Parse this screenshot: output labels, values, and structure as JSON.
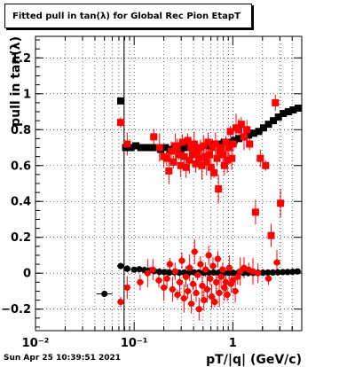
{
  "title_box": {
    "text": "Fitted pull in tan(λ) for Global Rec Pion EtapT"
  },
  "footer": {
    "timestamp": "Sun Apr 25 10:39:51 2021"
  },
  "colors": {
    "series_black": "#000000",
    "series_red": "#ff0000",
    "grid": "#000000"
  },
  "chart_data": {
    "type": "scatter",
    "title": "Fitted pull in tan(λ) for Global Rec Pion EtapT",
    "xlabel": "pT/|q| (GeV/c)",
    "ylabel": "pull in tan(λ)",
    "xscale": "log",
    "xlim": [
      0.01,
      5
    ],
    "ylim": [
      -0.32,
      1.32
    ],
    "grid": true,
    "x_tick_labels": [
      "10⁻²",
      "10⁻¹",
      "1"
    ],
    "x_ticks": [
      0.01,
      0.1,
      1
    ],
    "y_ticks": [
      -0.2,
      0,
      0.2,
      0.4,
      0.6,
      0.8,
      1,
      1.2
    ],
    "y_tick_labels": [
      "−0.2",
      "0",
      "0.2",
      "0.4",
      "0.6",
      "0.8",
      "1",
      "1.2"
    ],
    "vline_x": 0.079,
    "series": [
      {
        "role": "sigma_black_squares",
        "color": "#000000",
        "marker": "square",
        "points": [
          [
            0.073,
            0.96
          ],
          [
            0.082,
            0.7
          ],
          [
            0.093,
            0.7
          ],
          [
            0.104,
            0.71
          ],
          [
            0.117,
            0.7
          ],
          [
            0.131,
            0.7
          ],
          [
            0.147,
            0.7
          ],
          [
            0.165,
            0.7
          ],
          [
            0.185,
            0.69
          ],
          [
            0.207,
            0.7
          ],
          [
            0.232,
            0.69
          ],
          [
            0.26,
            0.7
          ],
          [
            0.292,
            0.69
          ],
          [
            0.327,
            0.7
          ],
          [
            0.367,
            0.7
          ],
          [
            0.411,
            0.7
          ],
          [
            0.461,
            0.7
          ],
          [
            0.517,
            0.71
          ],
          [
            0.58,
            0.71
          ],
          [
            0.65,
            0.72
          ],
          [
            0.729,
            0.72
          ],
          [
            0.818,
            0.73
          ],
          [
            0.917,
            0.73
          ],
          [
            1.03,
            0.74
          ],
          [
            1.15,
            0.75
          ],
          [
            1.29,
            0.76
          ],
          [
            1.45,
            0.77
          ],
          [
            1.63,
            0.78
          ],
          [
            1.83,
            0.79
          ],
          [
            2.05,
            0.81
          ],
          [
            2.3,
            0.83
          ],
          [
            2.58,
            0.85
          ],
          [
            2.9,
            0.87
          ],
          [
            3.25,
            0.89
          ],
          [
            3.65,
            0.9
          ],
          [
            4.09,
            0.91
          ],
          [
            4.59,
            0.92
          ]
        ]
      },
      {
        "role": "sigma_red_squares",
        "color": "#ff0000",
        "marker": "square",
        "points": [
          [
            0.073,
            0.84
          ],
          [
            0.085,
            0.72
          ],
          [
            0.158,
            0.76
          ],
          [
            0.181,
            0.7
          ],
          [
            0.2,
            0.65
          ],
          [
            0.214,
            0.64
          ],
          [
            0.225,
            0.57
          ],
          [
            0.238,
            0.68
          ],
          [
            0.25,
            0.62
          ],
          [
            0.262,
            0.71
          ],
          [
            0.273,
            0.7
          ],
          [
            0.285,
            0.66
          ],
          [
            0.297,
            0.6
          ],
          [
            0.309,
            0.73
          ],
          [
            0.322,
            0.65
          ],
          [
            0.336,
            0.59
          ],
          [
            0.349,
            0.74
          ],
          [
            0.363,
            0.63
          ],
          [
            0.377,
            0.7
          ],
          [
            0.392,
            0.66
          ],
          [
            0.406,
            0.72
          ],
          [
            0.421,
            0.61
          ],
          [
            0.437,
            0.68
          ],
          [
            0.453,
            0.64
          ],
          [
            0.47,
            0.7
          ],
          [
            0.487,
            0.6
          ],
          [
            0.505,
            0.71
          ],
          [
            0.523,
            0.65
          ],
          [
            0.542,
            0.62
          ],
          [
            0.561,
            0.73
          ],
          [
            0.581,
            0.66
          ],
          [
            0.602,
            0.59
          ],
          [
            0.623,
            0.7
          ],
          [
            0.645,
            0.56
          ],
          [
            0.668,
            0.72
          ],
          [
            0.692,
            0.64
          ],
          [
            0.716,
            0.47
          ],
          [
            0.741,
            0.68
          ],
          [
            0.767,
            0.7
          ],
          [
            0.794,
            0.66
          ],
          [
            0.822,
            0.6
          ],
          [
            0.851,
            0.73
          ],
          [
            0.881,
            0.63
          ],
          [
            0.912,
            0.7
          ],
          [
            0.944,
            0.79
          ],
          [
            0.977,
            0.64
          ],
          [
            1.01,
            0.72
          ],
          [
            1.08,
            0.81
          ],
          [
            1.15,
            0.8
          ],
          [
            1.22,
            0.83
          ],
          [
            1.3,
            0.76
          ],
          [
            1.39,
            0.8
          ],
          [
            1.48,
            0.72
          ],
          [
            1.7,
            0.34
          ],
          [
            1.9,
            0.64
          ],
          [
            2.15,
            0.6
          ],
          [
            2.45,
            0.21
          ],
          [
            2.7,
            0.95
          ],
          [
            3.05,
            0.39
          ]
        ]
      },
      {
        "role": "mean_black_circles",
        "color": "#000000",
        "marker": "circle",
        "points": [
          [
            0.05,
            -0.115
          ],
          [
            0.073,
            0.04
          ],
          [
            0.085,
            0.025
          ],
          [
            0.1,
            0.02
          ],
          [
            0.113,
            0.022
          ],
          [
            0.127,
            0.018
          ],
          [
            0.143,
            0.015
          ],
          [
            0.16,
            0.012
          ],
          [
            0.18,
            0.008
          ],
          [
            0.202,
            0.006
          ],
          [
            0.227,
            0.004
          ],
          [
            0.255,
            0.005
          ],
          [
            0.286,
            0.003
          ],
          [
            0.321,
            0.004
          ],
          [
            0.36,
            0.003
          ],
          [
            0.404,
            0.005
          ],
          [
            0.453,
            0.004
          ],
          [
            0.508,
            0.003
          ],
          [
            0.57,
            0.003
          ],
          [
            0.64,
            0.004
          ],
          [
            0.718,
            0.003
          ],
          [
            0.806,
            0.003
          ],
          [
            0.904,
            0.002
          ],
          [
            1.01,
            0.002
          ],
          [
            1.14,
            0.003
          ],
          [
            1.28,
            0.002
          ],
          [
            1.43,
            0.002
          ],
          [
            1.61,
            0.002
          ],
          [
            1.8,
            0.003
          ],
          [
            2.02,
            0.003
          ],
          [
            2.27,
            0.004
          ],
          [
            2.55,
            0.004
          ],
          [
            2.86,
            0.005
          ],
          [
            3.21,
            0.006
          ],
          [
            3.6,
            0.007
          ],
          [
            4.04,
            0.008
          ],
          [
            4.53,
            0.01
          ]
        ]
      },
      {
        "role": "mean_red_circles",
        "color": "#ff0000",
        "marker": "circle",
        "points": [
          [
            0.073,
            -0.16
          ],
          [
            0.085,
            -0.08
          ],
          [
            0.115,
            -0.05
          ],
          [
            0.137,
            0.0
          ],
          [
            0.155,
            0.02
          ],
          [
            0.178,
            -0.04
          ],
          [
            0.2,
            -0.08
          ],
          [
            0.215,
            -0.03
          ],
          [
            0.23,
            0.05
          ],
          [
            0.245,
            -0.09
          ],
          [
            0.26,
            0.01
          ],
          [
            0.275,
            -0.12
          ],
          [
            0.29,
            -0.05
          ],
          [
            0.305,
            0.07
          ],
          [
            0.32,
            -0.14
          ],
          [
            0.335,
            -0.02
          ],
          [
            0.35,
            -0.1
          ],
          [
            0.365,
            0.03
          ],
          [
            0.38,
            -0.17
          ],
          [
            0.395,
            -0.06
          ],
          [
            0.41,
            0.12
          ],
          [
            0.425,
            -0.11
          ],
          [
            0.44,
            -0.01
          ],
          [
            0.455,
            -0.2
          ],
          [
            0.47,
            0.05
          ],
          [
            0.49,
            -0.07
          ],
          [
            0.51,
            -0.15
          ],
          [
            0.53,
            0.02
          ],
          [
            0.55,
            -0.09
          ],
          [
            0.57,
            0.1
          ],
          [
            0.59,
            -0.03
          ],
          [
            0.61,
            -0.13
          ],
          [
            0.63,
            0.04
          ],
          [
            0.655,
            -0.16
          ],
          [
            0.68,
            -0.05
          ],
          [
            0.705,
            0.08
          ],
          [
            0.73,
            -0.11
          ],
          [
            0.76,
            -0.02
          ],
          [
            0.79,
            0.02
          ],
          [
            0.82,
            -0.08
          ],
          [
            0.85,
            -0.05
          ],
          [
            0.88,
            -0.12
          ],
          [
            0.92,
            0.03
          ],
          [
            0.96,
            -0.06
          ],
          [
            1.0,
            -0.04
          ],
          [
            1.06,
            -0.1
          ],
          [
            1.12,
            -0.02
          ],
          [
            1.19,
            0.01
          ],
          [
            1.3,
            0.03
          ],
          [
            1.45,
            0.02
          ],
          [
            1.6,
            0.01
          ],
          [
            1.8,
            0.0
          ],
          [
            2.3,
            -0.03
          ],
          [
            2.8,
            0.06
          ]
        ]
      }
    ]
  }
}
